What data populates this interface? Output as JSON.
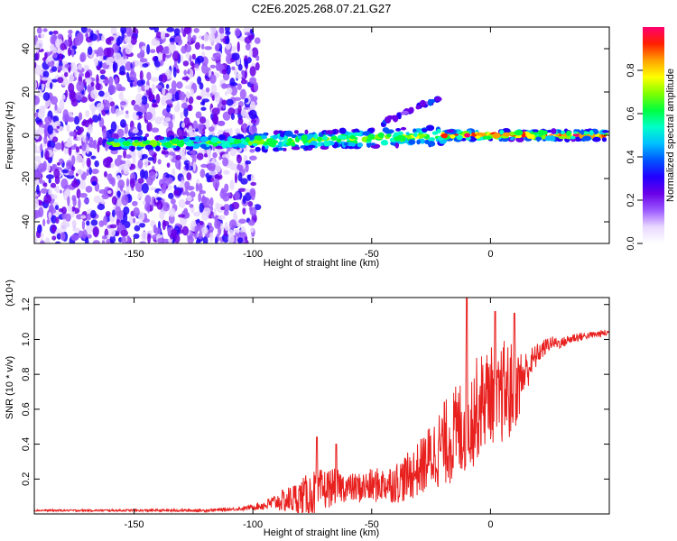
{
  "title": "C2E6.2025.268.07.21.G27",
  "chart_data": [
    {
      "type": "heatmap",
      "name": "spectrogram",
      "xlabel": "Height of straight line (km)",
      "ylabel": "Frequency (Hz)",
      "xlim": [
        -192,
        50
      ],
      "ylim": [
        -50,
        50
      ],
      "xticks": [
        -150,
        -100,
        -50,
        0
      ],
      "yticks": [
        -40,
        -20,
        0,
        20,
        40
      ],
      "colorbar": {
        "label": "Normalized spectral amplitude",
        "range": [
          0.0,
          1.0
        ],
        "ticks": [
          0.0,
          0.2,
          0.4,
          0.6,
          0.8
        ],
        "tick_labels": [
          "0.0",
          "0.2",
          "0.4",
          "0.6",
          "0.8"
        ],
        "colors": [
          "#ffffff",
          "#e8d8ff",
          "#9b59ff",
          "#6a00e8",
          "#2200ff",
          "#0055ff",
          "#00c0ff",
          "#00ffc8",
          "#00ff40",
          "#80ff00",
          "#ffff00",
          "#ffa000",
          "#ff2000",
          "#ff0070"
        ]
      },
      "features": [
        {
          "kind": "noise",
          "x_range": [
            -192,
            -98
          ],
          "y_range": [
            -50,
            50
          ],
          "level": 0.2
        },
        {
          "kind": "track",
          "x": [
            -160,
            -100,
            -50,
            -20,
            0,
            50
          ],
          "y": [
            -4,
            -3,
            -1.5,
            0,
            0,
            0
          ],
          "level": 0.5
        },
        {
          "kind": "branch",
          "x": [
            -45,
            -20
          ],
          "y": [
            6,
            18
          ],
          "level": 0.25
        }
      ]
    },
    {
      "type": "line",
      "name": "snr",
      "xlabel": "Height of straight line (km)",
      "ylabel": "SNR (10 * v/v)",
      "y_scale_label": "(x10⁴)",
      "xlim": [
        -192,
        50
      ],
      "ylim": [
        0.0,
        1.24
      ],
      "xticks": [
        -150,
        -100,
        -50,
        0
      ],
      "yticks": [
        0.2,
        0.4,
        0.6,
        0.8,
        1.0,
        1.2
      ],
      "ytick_labels": [
        "0.2",
        "0.4",
        "0.6",
        "0.8",
        "1.0",
        "1.2"
      ],
      "series": [
        {
          "name": "SNR",
          "color": "#e8201e",
          "x": [
            -192,
            -160,
            -120,
            -105,
            -100,
            -95,
            -90,
            -85,
            -80,
            -75,
            -70,
            -65,
            -60,
            -55,
            -50,
            -45,
            -40,
            -35,
            -30,
            -25,
            -20,
            -15,
            -12,
            -10,
            -8,
            -5,
            -3,
            0,
            3,
            5,
            8,
            10,
            12,
            15,
            20,
            25,
            30,
            35,
            40,
            45,
            50
          ],
          "baseline": [
            0.02,
            0.02,
            0.02,
            0.03,
            0.04,
            0.05,
            0.07,
            0.08,
            0.1,
            0.11,
            0.14,
            0.16,
            0.15,
            0.15,
            0.16,
            0.17,
            0.18,
            0.21,
            0.26,
            0.33,
            0.4,
            0.45,
            0.5,
            0.55,
            0.55,
            0.62,
            0.65,
            0.7,
            0.62,
            0.7,
            0.7,
            0.72,
            0.75,
            0.82,
            0.92,
            0.98,
            0.98,
            1.01,
            1.02,
            1.03,
            1.04
          ],
          "amplitude": [
            0.005,
            0.006,
            0.008,
            0.01,
            0.015,
            0.03,
            0.05,
            0.08,
            0.1,
            0.14,
            0.12,
            0.1,
            0.08,
            0.09,
            0.1,
            0.1,
            0.12,
            0.14,
            0.16,
            0.2,
            0.24,
            0.28,
            0.3,
            0.32,
            0.3,
            0.3,
            0.28,
            0.28,
            0.25,
            0.3,
            0.3,
            0.25,
            0.2,
            0.12,
            0.06,
            0.04,
            0.03,
            0.03,
            0.02,
            0.02,
            0.02
          ],
          "peaks": [
            {
              "x": -73,
              "y": 0.44
            },
            {
              "x": -65,
              "y": 0.4
            },
            {
              "x": -10,
              "y": 1.24
            },
            {
              "x": 2,
              "y": 1.16
            },
            {
              "x": 10,
              "y": 1.15
            }
          ]
        }
      ]
    }
  ]
}
